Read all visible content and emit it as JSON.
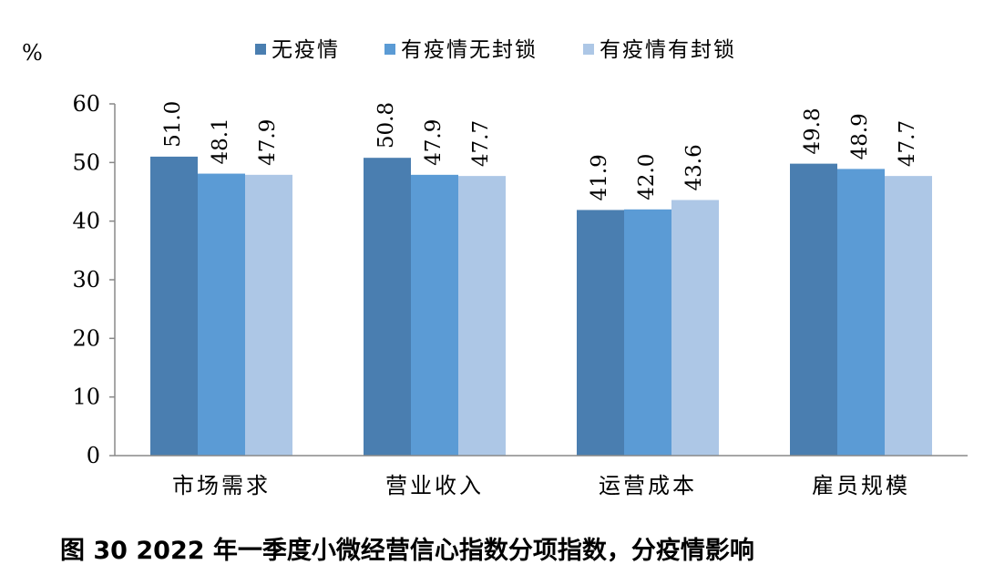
{
  "chart_data": {
    "type": "bar",
    "ylabel": "%",
    "ylim": [
      0,
      60
    ],
    "yticks": [
      0,
      10,
      20,
      30,
      40,
      50,
      60
    ],
    "categories": [
      "市场需求",
      "营业收入",
      "运营成本",
      "雇员规模"
    ],
    "series": [
      {
        "name": "无疫情",
        "color": "#4a7eb0",
        "values": [
          51.0,
          50.8,
          41.9,
          49.8
        ]
      },
      {
        "name": "有疫情无封锁",
        "color": "#5b9bd5",
        "values": [
          48.1,
          47.9,
          42.0,
          48.9
        ]
      },
      {
        "name": "有疫情有封锁",
        "color": "#adc7e6",
        "values": [
          47.9,
          47.7,
          43.6,
          47.7
        ]
      }
    ],
    "legend_position": "top",
    "grid": false
  },
  "caption": "图 30 2022 年一季度小微经营信心指数分项指数，分疫情影响"
}
